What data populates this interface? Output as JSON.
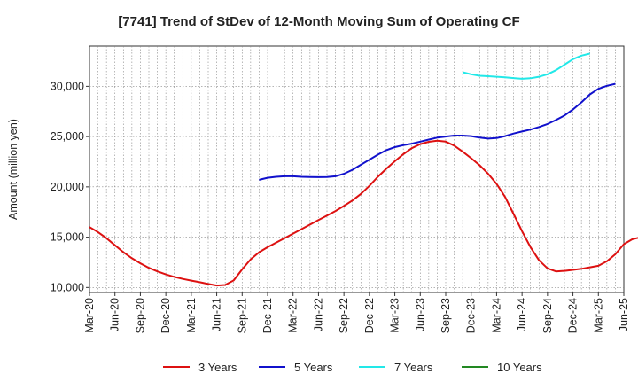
{
  "chart_data": {
    "type": "line",
    "title": "[7741]  Trend of StDev of 12-Month Moving Sum of Operating CF",
    "ylabel": "Amount (million yen)",
    "xlabel": "",
    "ylim": [
      9500,
      34000
    ],
    "yticks": [
      10000,
      15000,
      20000,
      25000,
      30000
    ],
    "ytick_labels": [
      "10,000",
      "15,000",
      "20,000",
      "25,000",
      "30,000"
    ],
    "xticks": [
      "Mar-20",
      "Jun-20",
      "Sep-20",
      "Dec-20",
      "Mar-21",
      "Jun-21",
      "Sep-21",
      "Dec-21",
      "Mar-22",
      "Jun-22",
      "Sep-22",
      "Dec-22",
      "Mar-23",
      "Jun-23",
      "Sep-23",
      "Dec-23",
      "Mar-24",
      "Jun-24",
      "Sep-24",
      "Dec-24",
      "Mar-25",
      "Jun-25"
    ],
    "grid": true,
    "legend_position": "bottom",
    "series": [
      {
        "name": "3 Years",
        "color": "#dd1111",
        "start": "Mar-20",
        "values": [
          16000,
          15500,
          14900,
          14200,
          13500,
          12900,
          12400,
          11950,
          11600,
          11300,
          11050,
          10850,
          10680,
          10520,
          10350,
          10200,
          10250,
          10700,
          11800,
          12800,
          13500,
          14000,
          14450,
          14900,
          15350,
          15800,
          16250,
          16700,
          17150,
          17600,
          18100,
          18650,
          19300,
          20100,
          21000,
          21800,
          22550,
          23250,
          23850,
          24250,
          24480,
          24600,
          24500,
          24100,
          23500,
          22850,
          22150,
          21300,
          20300,
          19000,
          17300,
          15600,
          14000,
          12700,
          11900,
          11600,
          11650,
          11750,
          11850,
          12000,
          12150,
          12600,
          13300,
          14300,
          14800,
          15000,
          14900
        ]
      },
      {
        "name": "5 Years",
        "color": "#1111cc",
        "start": "Nov-21",
        "values": [
          20700,
          20900,
          21000,
          21050,
          21050,
          21000,
          20980,
          20970,
          20980,
          21050,
          21300,
          21700,
          22200,
          22700,
          23200,
          23650,
          23950,
          24150,
          24300,
          24500,
          24700,
          24900,
          25000,
          25100,
          25100,
          25050,
          24900,
          24800,
          24850,
          25050,
          25300,
          25500,
          25700,
          25950,
          26250,
          26650,
          27100,
          27700,
          28400,
          29200,
          29750,
          30050,
          30250
        ]
      },
      {
        "name": "7 Years",
        "color": "#22e8e8",
        "start": "Nov-23",
        "values": [
          31400,
          31200,
          31050,
          31000,
          30950,
          30900,
          30820,
          30750,
          30800,
          30950,
          31200,
          31600,
          32150,
          32700,
          33050,
          33250
        ]
      },
      {
        "name": "10 Years",
        "color": "#228822",
        "start": "Mar-20",
        "values": []
      }
    ]
  }
}
